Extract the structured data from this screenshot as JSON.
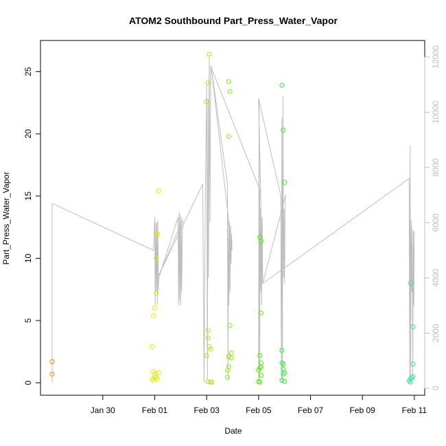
{
  "chart_data": {
    "type": "scatter",
    "title": "ATOM2 Southbound Part_Press_Water_Vapor",
    "xlabel": "Date",
    "ylabel": "Part_Press_Water_Vapor",
    "x_tick_labels": [
      "Jan 30",
      "Feb 01",
      "Feb 03",
      "Feb 05",
      "Feb 07",
      "Feb 09",
      "Feb 11"
    ],
    "x_ticks_day": [
      30,
      32,
      34,
      36,
      38,
      40,
      42
    ],
    "xlim_day": [
      27.6,
      42.4
    ],
    "ylim": [
      -1,
      27.5
    ],
    "y_ticks": [
      0,
      5,
      10,
      15,
      20,
      25
    ],
    "y2_ticks": [
      0,
      2000,
      4000,
      6000,
      8000,
      10000,
      12000
    ],
    "y2lim": [
      -250,
      12600
    ],
    "grid": false,
    "series": [
      {
        "marker": "circle-open",
        "points": [
          {
            "x": 28.05,
            "y": 1.7,
            "color": "#ff8000"
          },
          {
            "x": 28.05,
            "y": 0.7,
            "color": "#ff8000"
          },
          {
            "x": 32.05,
            "y": 7.2,
            "color": "#e6e600"
          },
          {
            "x": 32.05,
            "y": 10.0,
            "color": "#e6e600"
          },
          {
            "x": 32.1,
            "y": 12.0,
            "color": "#e6e600"
          },
          {
            "x": 32.15,
            "y": 15.4,
            "color": "#e6e600"
          },
          {
            "x": 32.1,
            "y": 11.9,
            "color": "#e6e600"
          },
          {
            "x": 32.0,
            "y": 0.7,
            "color": "#e6e600"
          },
          {
            "x": 32.05,
            "y": 0.5,
            "color": "#e6e600"
          },
          {
            "x": 32.1,
            "y": 0.3,
            "color": "#e6e600"
          },
          {
            "x": 32.15,
            "y": 0.8,
            "color": "#e6e600"
          },
          {
            "x": 31.9,
            "y": 2.9,
            "color": "#d8f000"
          },
          {
            "x": 31.95,
            "y": 5.4,
            "color": "#d8f000"
          },
          {
            "x": 32.0,
            "y": 6.0,
            "color": "#d8f000"
          },
          {
            "x": 31.95,
            "y": 0.9,
            "color": "#d8f000"
          },
          {
            "x": 31.9,
            "y": 0.3,
            "color": "#d8f000"
          },
          {
            "x": 31.95,
            "y": 0.2,
            "color": "#d8f000"
          },
          {
            "x": 32.0,
            "y": 0.4,
            "color": "#d8f000"
          },
          {
            "x": 34.0,
            "y": 22.6,
            "color": "#a0ee00"
          },
          {
            "x": 34.05,
            "y": 24.1,
            "color": "#a0ee00"
          },
          {
            "x": 34.1,
            "y": 26.4,
            "color": "#a0ee00"
          },
          {
            "x": 34.05,
            "y": 4.2,
            "color": "#a0ee00"
          },
          {
            "x": 34.05,
            "y": 3.6,
            "color": "#a0ee00"
          },
          {
            "x": 34.1,
            "y": 2.9,
            "color": "#a0ee00"
          },
          {
            "x": 34.0,
            "y": 2.2,
            "color": "#a0ee00"
          },
          {
            "x": 34.15,
            "y": 2.7,
            "color": "#a0ee00"
          },
          {
            "x": 34.05,
            "y": 0.1,
            "color": "#a0ee00"
          },
          {
            "x": 34.15,
            "y": 0.05,
            "color": "#a0ee00"
          },
          {
            "x": 34.2,
            "y": 0.05,
            "color": "#a0ee00"
          },
          {
            "x": 34.85,
            "y": 24.2,
            "color": "#7cf000"
          },
          {
            "x": 34.9,
            "y": 23.4,
            "color": "#7cf000"
          },
          {
            "x": 34.85,
            "y": 19.8,
            "color": "#7cf000"
          },
          {
            "x": 34.9,
            "y": 4.6,
            "color": "#7cf000"
          },
          {
            "x": 34.95,
            "y": 2.4,
            "color": "#7cf000"
          },
          {
            "x": 34.85,
            "y": 2.1,
            "color": "#7cf000"
          },
          {
            "x": 34.95,
            "y": 2.0,
            "color": "#7cf000"
          },
          {
            "x": 34.85,
            "y": 1.3,
            "color": "#7cf000"
          },
          {
            "x": 34.8,
            "y": 1.0,
            "color": "#7cf000"
          },
          {
            "x": 34.8,
            "y": 0.45,
            "color": "#7cf000"
          },
          {
            "x": 36.05,
            "y": 11.7,
            "color": "#4cf000"
          },
          {
            "x": 36.1,
            "y": 11.4,
            "color": "#4cf000"
          },
          {
            "x": 36.1,
            "y": 5.6,
            "color": "#4cf000"
          },
          {
            "x": 36.05,
            "y": 2.2,
            "color": "#4cf000"
          },
          {
            "x": 36.1,
            "y": 1.6,
            "color": "#4cf000"
          },
          {
            "x": 36.1,
            "y": 1.3,
            "color": "#4cf000"
          },
          {
            "x": 36.05,
            "y": 1.2,
            "color": "#4cf000"
          },
          {
            "x": 36.0,
            "y": 1.0,
            "color": "#4cf000"
          },
          {
            "x": 36.1,
            "y": 0.6,
            "color": "#4cf000"
          },
          {
            "x": 36.0,
            "y": 0.1,
            "color": "#4cf000"
          },
          {
            "x": 36.05,
            "y": 0.05,
            "color": "#4cf000"
          },
          {
            "x": 36.9,
            "y": 23.9,
            "color": "#2ef030"
          },
          {
            "x": 36.95,
            "y": 20.3,
            "color": "#2ef030"
          },
          {
            "x": 37.0,
            "y": 16.1,
            "color": "#2ef030"
          },
          {
            "x": 36.9,
            "y": 2.6,
            "color": "#2ef030"
          },
          {
            "x": 36.9,
            "y": 1.6,
            "color": "#2ef030"
          },
          {
            "x": 36.95,
            "y": 1.5,
            "color": "#2ef030"
          },
          {
            "x": 36.95,
            "y": 1.1,
            "color": "#2ef030"
          },
          {
            "x": 37.0,
            "y": 0.8,
            "color": "#2ef030"
          },
          {
            "x": 36.95,
            "y": 0.7,
            "color": "#2ef030"
          },
          {
            "x": 36.9,
            "y": 0.2,
            "color": "#2ef030"
          },
          {
            "x": 37.0,
            "y": 0.1,
            "color": "#2ef030"
          },
          {
            "x": 41.85,
            "y": 8.0,
            "color": "#33e8a0"
          },
          {
            "x": 41.95,
            "y": 4.5,
            "color": "#33e8a0"
          },
          {
            "x": 41.95,
            "y": 1.5,
            "color": "#33e8a0"
          },
          {
            "x": 41.95,
            "y": 0.5,
            "color": "#33e8a0"
          },
          {
            "x": 41.9,
            "y": 0.4,
            "color": "#33e8a0"
          },
          {
            "x": 41.85,
            "y": 0.3,
            "color": "#33e8a0"
          },
          {
            "x": 41.8,
            "y": 0.15,
            "color": "#33e8a0"
          },
          {
            "x": 41.85,
            "y": 0.05,
            "color": "#33e8a0"
          }
        ]
      },
      {
        "axis": "right",
        "color": "#bdbdbd",
        "line": [
          [
            28.05,
            200
          ],
          [
            28.05,
            6700
          ],
          [
            31.95,
            5000
          ],
          [
            32.0,
            6200
          ],
          [
            32.02,
            3000
          ],
          [
            32.04,
            6000
          ],
          [
            32.06,
            3500
          ],
          [
            32.08,
            6000
          ],
          [
            32.1,
            3000
          ],
          [
            32.12,
            6100
          ],
          [
            32.14,
            3500
          ],
          [
            32.16,
            4000
          ],
          [
            32.9,
            6200
          ],
          [
            32.92,
            3000
          ],
          [
            32.94,
            6400
          ],
          [
            32.96,
            3200
          ],
          [
            32.98,
            6300
          ],
          [
            33.0,
            3000
          ],
          [
            33.02,
            6200
          ],
          [
            33.04,
            3500
          ],
          [
            33.06,
            5200
          ],
          [
            33.08,
            6100
          ],
          [
            32.16,
            4100
          ],
          [
            33.85,
            7400
          ],
          [
            33.9,
            200
          ],
          [
            33.95,
            7000
          ],
          [
            34.0,
            11000
          ],
          [
            34.03,
            300
          ],
          [
            34.05,
            10500
          ],
          [
            34.07,
            4000
          ],
          [
            34.1,
            12000
          ],
          [
            34.13,
            6000
          ],
          [
            34.16,
            11700
          ],
          [
            34.18,
            11600
          ],
          [
            34.8,
            7400
          ],
          [
            34.82,
            300
          ],
          [
            34.84,
            6200
          ],
          [
            34.86,
            3000
          ],
          [
            34.88,
            6000
          ],
          [
            34.9,
            3500
          ],
          [
            34.92,
            5900
          ],
          [
            34.94,
            4500
          ],
          [
            34.96,
            5600
          ],
          [
            34.98,
            5000
          ],
          [
            34.18,
            11600
          ],
          [
            36.05,
            7200
          ],
          [
            36.0,
            200
          ],
          [
            36.02,
            10500
          ],
          [
            36.04,
            300
          ],
          [
            36.06,
            6500
          ],
          [
            36.08,
            3500
          ],
          [
            36.1,
            6300
          ],
          [
            36.12,
            3000
          ],
          [
            36.14,
            6200
          ],
          [
            36.16,
            3800
          ],
          [
            36.0,
            10500
          ],
          [
            36.85,
            7000
          ],
          [
            36.88,
            200
          ],
          [
            36.9,
            9800
          ],
          [
            36.92,
            300
          ],
          [
            36.94,
            10600
          ],
          [
            36.96,
            4000
          ],
          [
            36.98,
            6500
          ],
          [
            37.0,
            3800
          ],
          [
            37.02,
            6300
          ],
          [
            37.04,
            7000
          ],
          [
            36.16,
            3800
          ],
          [
            41.8,
            7600
          ],
          [
            41.82,
            200
          ],
          [
            41.84,
            8800
          ],
          [
            41.86,
            300
          ],
          [
            41.88,
            6100
          ],
          [
            41.9,
            3500
          ],
          [
            41.92,
            5800
          ],
          [
            41.94,
            300
          ],
          [
            41.96,
            5700
          ],
          [
            41.98,
            3000
          ],
          [
            42.0,
            5700
          ]
        ]
      }
    ]
  }
}
